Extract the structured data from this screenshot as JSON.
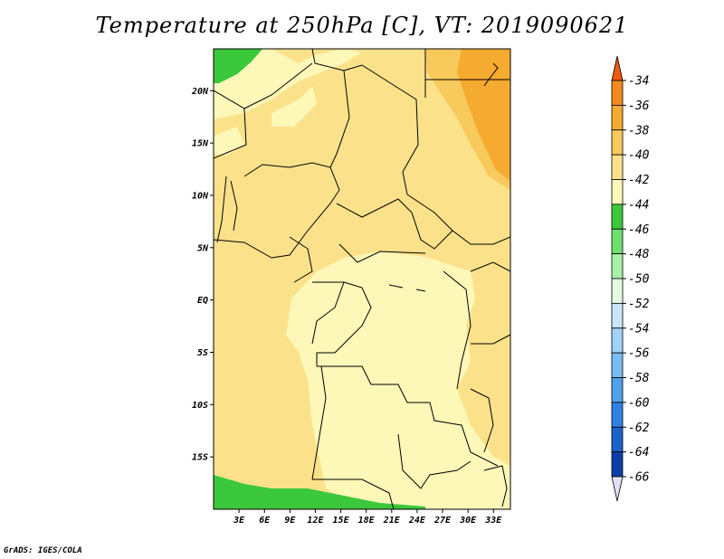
{
  "title": "Temperature at 250hPa [C], VT: 2019090621",
  "footer": "GrADS: IGES/COLA",
  "map": {
    "lon_range": [
      0,
      35
    ],
    "lat_range": [
      -20,
      24
    ],
    "lon_ticks": [
      "3E",
      "6E",
      "9E",
      "12E",
      "15E",
      "18E",
      "21E",
      "24E",
      "27E",
      "30E",
      "33E"
    ],
    "lat_ticks": [
      "20N",
      "15N",
      "10N",
      "5N",
      "EQ",
      "5S",
      "10S",
      "15S"
    ]
  },
  "colorbar": {
    "labels": [
      "-34",
      "-36",
      "-38",
      "-40",
      "-42",
      "-44",
      "-46",
      "-48",
      "-50",
      "-52",
      "-54",
      "-56",
      "-58",
      "-60",
      "-62",
      "-64",
      "-66"
    ],
    "colors": [
      "#f05a0f",
      "#f08a1a",
      "#f5aa30",
      "#f8c95b",
      "#fbe28a",
      "#fdf7b8",
      "#3cc83c",
      "#6ee06e",
      "#a8f0a8",
      "#e2fbe2",
      "#c8e6fa",
      "#9fd2f8",
      "#78bcf2",
      "#50a2ec",
      "#2f82e2",
      "#1a62cc",
      "#0c40a8",
      "#0a1670",
      "#e0e0f8"
    ]
  },
  "colors": {
    "field_minus_44": "#fdf7b8",
    "field_minus_42": "#fbe28a",
    "field_minus_40": "#f8c95b",
    "field_minus_46": "#3cc83c"
  }
}
